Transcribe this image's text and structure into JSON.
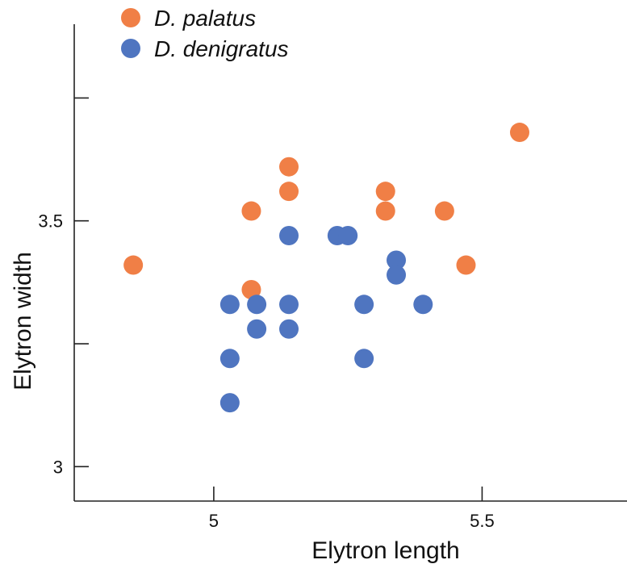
{
  "chart_data": {
    "type": "scatter",
    "xlabel": "Elytron length",
    "ylabel": "Elytron width",
    "xlim": [
      4.74,
      5.77
    ],
    "ylim": [
      2.93,
      3.9
    ],
    "xticks": [
      {
        "value": 5.0,
        "label": "5"
      },
      {
        "value": 5.5,
        "label": "5.5"
      }
    ],
    "yticks": [
      {
        "value": 3.0,
        "label": "3"
      },
      {
        "value": 3.25,
        "label": ""
      },
      {
        "value": 3.5,
        "label": "3.5"
      },
      {
        "value": 3.75,
        "label": ""
      }
    ],
    "grid": false,
    "legend_position": "top-left",
    "series": [
      {
        "name": "D. palatus",
        "color": "#f07f46",
        "points": [
          [
            4.85,
            3.41
          ],
          [
            5.07,
            3.36
          ],
          [
            5.07,
            3.52
          ],
          [
            5.14,
            3.56
          ],
          [
            5.14,
            3.61
          ],
          [
            5.32,
            3.52
          ],
          [
            5.32,
            3.56
          ],
          [
            5.43,
            3.52
          ],
          [
            5.47,
            3.41
          ],
          [
            5.57,
            3.68
          ]
        ]
      },
      {
        "name": "D. denigratus",
        "color": "#4f75c0",
        "points": [
          [
            5.03,
            3.33
          ],
          [
            5.03,
            3.22
          ],
          [
            5.03,
            3.13
          ],
          [
            5.08,
            3.33
          ],
          [
            5.08,
            3.28
          ],
          [
            5.14,
            3.47
          ],
          [
            5.14,
            3.33
          ],
          [
            5.14,
            3.28
          ],
          [
            5.23,
            3.47
          ],
          [
            5.25,
            3.47
          ],
          [
            5.28,
            3.33
          ],
          [
            5.28,
            3.22
          ],
          [
            5.34,
            3.42
          ],
          [
            5.34,
            3.39
          ],
          [
            5.39,
            3.33
          ]
        ]
      }
    ]
  }
}
